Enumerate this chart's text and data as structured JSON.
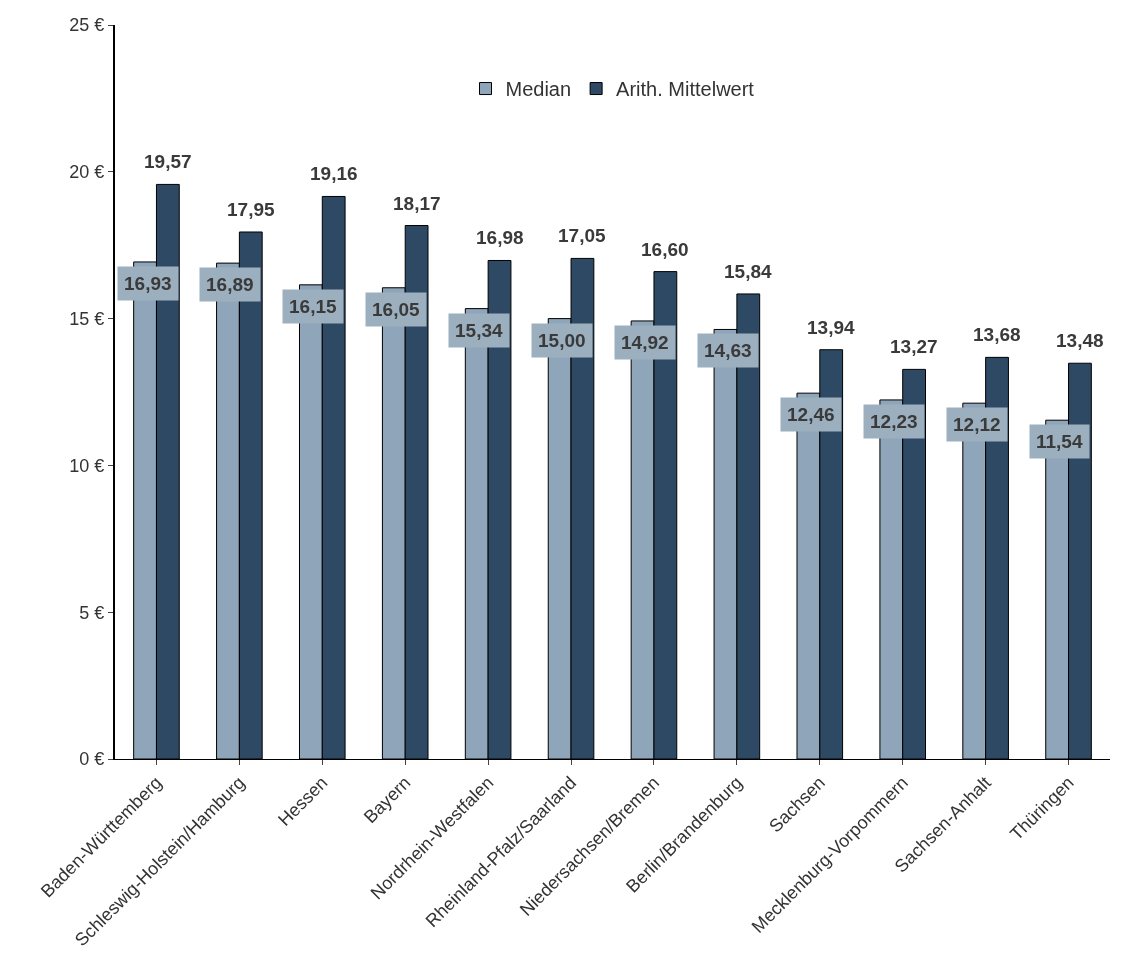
{
  "chart_data": {
    "type": "bar",
    "categories": [
      "Baden-Württemberg",
      "Schleswig-Holstein/Hamburg",
      "Hessen",
      "Bayern",
      "Nordrhein-Westfalen",
      "Rheinland-Pfalz/Saarland",
      "Niedersachsen/Bremen",
      "Berlin/Brandenburg",
      "Sachsen",
      "Mecklenburg-Vorpommern",
      "Sachsen-Anhalt",
      "Thüringen"
    ],
    "series": [
      {
        "name": "Median",
        "color": "#8fa5ba",
        "values": [
          16.93,
          16.89,
          16.15,
          16.05,
          15.34,
          15.0,
          14.92,
          14.63,
          12.46,
          12.23,
          12.12,
          11.54
        ],
        "value_labels": [
          "16,93",
          "16,89",
          "16,15",
          "16,05",
          "15,34",
          "15,00",
          "14,92",
          "14,63",
          "12,46",
          "12,23",
          "12,12",
          "11,54"
        ]
      },
      {
        "name": "Arith. Mittelwert",
        "color": "#2e4963",
        "values": [
          19.57,
          17.95,
          19.16,
          18.17,
          16.98,
          17.05,
          16.6,
          15.84,
          13.94,
          13.27,
          13.68,
          13.48
        ],
        "value_labels": [
          "19,57",
          "17,95",
          "19,16",
          "18,17",
          "16,98",
          "17,05",
          "16,60",
          "15,84",
          "13,94",
          "13,27",
          "13,68",
          "13,48"
        ]
      }
    ],
    "ylim": [
      0,
      25
    ],
    "yticks": [
      {
        "value": 0,
        "label": "0 €"
      },
      {
        "value": 5,
        "label": "5 €"
      },
      {
        "value": 10,
        "label": "10 €"
      },
      {
        "value": 15,
        "label": "15 €"
      },
      {
        "value": 20,
        "label": "20 €"
      },
      {
        "value": 25,
        "label": "25 €"
      }
    ],
    "legend": "top"
  }
}
